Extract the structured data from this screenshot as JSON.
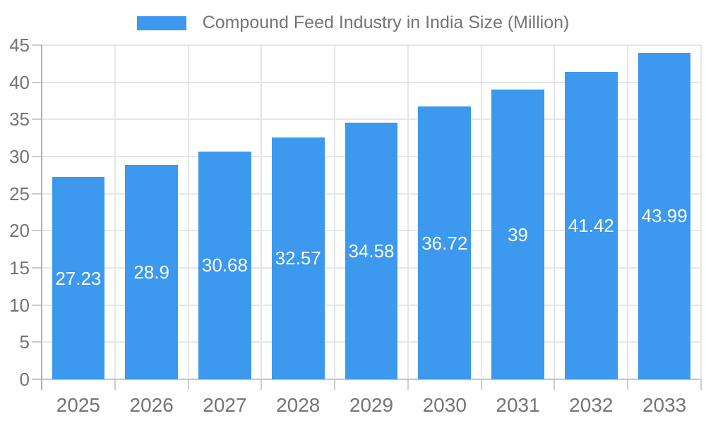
{
  "legend": {
    "label": "Compound Feed Industry in India Size (Million)"
  },
  "chart_data": {
    "type": "bar",
    "title": "Compound Feed Industry in India Size (Million)",
    "categories": [
      "2025",
      "2026",
      "2027",
      "2028",
      "2029",
      "2030",
      "2031",
      "2032",
      "2033"
    ],
    "series": [
      {
        "name": "Compound Feed Industry in India Size (Million)",
        "values": [
          27.23,
          28.9,
          30.68,
          32.57,
          34.58,
          36.72,
          39,
          41.42,
          43.99
        ]
      }
    ],
    "bar_labels": [
      "27.23",
      "28.9",
      "30.68",
      "32.57",
      "34.58",
      "36.72",
      "39",
      "41.42",
      "43.99"
    ],
    "xlabel": "",
    "ylabel": "",
    "ylim": [
      0,
      45
    ],
    "yticks": [
      0,
      5,
      10,
      15,
      20,
      25,
      30,
      35,
      40,
      45
    ],
    "grid": true,
    "legend_position": "top",
    "colors": {
      "bar": "#3C99EE",
      "bar_label": "#ffffff",
      "axis_text": "#757575",
      "grid": "#e6e6e6",
      "axis_line": "#b1b1b1",
      "baseline": "#c6c6c6",
      "tick": "#cccccc"
    }
  }
}
